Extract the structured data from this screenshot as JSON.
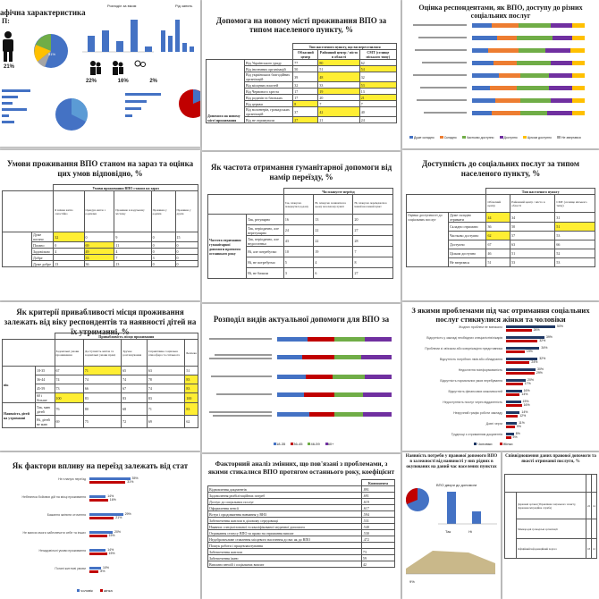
{
  "tiles": {
    "t1": {
      "title": "афічна характеристика",
      "sub": "П:",
      "gender_pct": "21%",
      "children_pcts": [
        "22%",
        "16%",
        "2%"
      ],
      "pie_pct": "51%",
      "title_sm": "Розподіл за віком",
      "title_sm2": "Рід занять"
    },
    "t2": {
      "title": "Допомога на новому місті проживання ВПО за типом населеного пункту, %",
      "col_head": "Тип населеного пункту, що ви переселилися",
      "cols": [
        "Обласний центр",
        "Районний центр / місто в області",
        "СМТ (селище міського типу)"
      ],
      "rows": [
        [
          "Від Українського уряду",
          "77",
          "80",
          "62"
        ],
        [
          "Від іноземних організацій",
          "50",
          "51",
          "54"
        ],
        [
          "Від українських благодійних організацій",
          "39",
          "48",
          "32"
        ],
        [
          "Від місцевих властей",
          "32",
          "33",
          "53"
        ],
        [
          "Від Червоного хреста",
          "17",
          "19",
          "13"
        ],
        [
          "Від родичів та близьких",
          "17",
          "20",
          "21"
        ],
        [
          "Від церкви",
          "8",
          "7",
          "7"
        ],
        [
          "Від волонтерів, громадських організацій",
          "37",
          "42",
          "40"
        ],
        [
          "Від не отримували",
          "27",
          "21",
          "24"
        ]
      ],
      "side_label": "Допомога на новому місті проживання"
    },
    "t3": {
      "title": "Оцінка респондентами, як ВПО, доступу до різних соціальних послуг",
      "legend": [
        "Дуже складно",
        "Складно",
        "Частково доступно",
        "Доступно",
        "Цілком доступно",
        "Не звертався"
      ]
    },
    "t4": {
      "title": "Умови проживання ВПО станом на зараз та оцінка цих умов відповідно, %",
      "col_head": "Умови проживання ВПО станом на зараз",
      "rows": [
        [
          "Дуже погано",
          "32",
          "0",
          "9",
          "0",
          "15"
        ],
        [
          "Погано",
          "0",
          "69",
          "11",
          "0",
          "0"
        ],
        [
          "Задовільно",
          "4",
          "49",
          "4",
          "0",
          "0"
        ],
        [
          "Добре",
          "",
          "33",
          "7",
          "3",
          "0"
        ],
        [
          "Дуже добре",
          "13",
          "36",
          "13",
          "0",
          "0"
        ]
      ]
    },
    "t5": {
      "title": "Як частота отримання гуманітарної допомоги від намір переїзду, %",
      "col_head": "Чи плануєте переїзд",
      "cols": [
        "Так, плануємо повернутися додому",
        "Ні, плануємо залишатися в цьому населеному пункті",
        "Ні, плануємо переїжджати в інший населений пункт"
      ],
      "rows": [
        [
          "Так, регулярно",
          "16",
          "13",
          "20"
        ],
        [
          "Так, періодично, але нерегулярно",
          "24",
          "22",
          "27"
        ],
        [
          "Так, періодично, але недостатньо",
          "43",
          "22",
          "28"
        ],
        [
          "Ні, але потребуємо",
          "10",
          "19",
          "7"
        ],
        [
          "Ні, не потребуємо",
          "5",
          "4",
          "8"
        ],
        [
          "Ні, не бачили",
          "3",
          "6",
          "27"
        ]
      ],
      "side_label": "Частота отримання гуманітарної допомоги протягом останнього року"
    },
    "t6": {
      "title": "Доступність до соціальних послуг за типом населеного пункту, %",
      "col_head": "Тип населеного пункту",
      "cols": [
        "Обласний центр",
        "Районний центр / місто в області",
        "СМТ (селище міського типу)"
      ],
      "rows": [
        [
          "Дуже складно отримати",
          "44",
          "34",
          "31"
        ],
        [
          "Складно отримати",
          "36",
          "50",
          "51"
        ],
        [
          "Частково доступно",
          "62",
          "57",
          "53"
        ],
        [
          "Доступно",
          "67",
          "63",
          "66"
        ],
        [
          "Цілком доступно",
          "46",
          "51",
          "52"
        ],
        [
          "Не звертався",
          "51",
          "53",
          "53"
        ]
      ],
      "side_label": "Оцінка доступності до соціальних послуг"
    },
    "t7": {
      "title": "Як критерії привабливості місця проживання залежать від віку респондентів та наявності дітей на їх утриманні, %",
      "col_head": "Привабливість місця проживання",
      "cols": [
        "Задовільні умови проживання",
        "Доступність житла та задовільні умови праці",
        "Зручне розташування",
        "Сприятливе соціальна атмосфера та спільнота",
        "Безпека"
      ],
      "groups": [
        {
          "label": "вік",
          "rows": [
            [
              "18-35",
              "67",
              "71",
              "65",
              "63",
              "51"
            ],
            [
              "36-44",
              "74",
              "74",
              "74",
              "78",
              "83"
            ],
            [
              "45-59",
              "73",
              "66",
              "67",
              "74",
              "83"
            ],
            [
              "60 і більше",
              "100",
              "83",
              "83",
              "83",
              "100"
            ]
          ]
        },
        {
          "label": "Наявність дітей на утриманні",
          "rows": [
            [
              "Так, маю дітей",
              "76",
              "80",
              "68",
              "71",
              "83"
            ],
            [
              "Ні, дітей не маю",
              "69",
              "75",
              "72",
              "69",
              "62"
            ]
          ]
        }
      ]
    },
    "t8": {
      "title": "Розподіл видів актуальної допомоги для ВПО за",
      "legend": [
        "18-35",
        "36-45",
        "46-59",
        "60+"
      ]
    },
    "t9": {
      "title": "З якими проблемами під час отримання соціальних послуг стикнулися жінки та чоловіки",
      "items": [
        [
          "Жодних проблем не виникало",
          "50%",
          "26%"
        ],
        [
          "Відсутність у закладі необхідних спеціалістів/лікарів",
          "39%",
          "32%"
        ],
        [
          "Проблеми зі зв'язком або комунікацією представника",
          "34%",
          "19%"
        ],
        [
          "Відсутність потрібних ліків або обладнання",
          "32%",
          "24%"
        ],
        [
          "Недостатня поінформованість",
          "30%",
          "29%"
        ],
        [
          "Відсутність нормальних умов перебування",
          "20%",
          "17%"
        ],
        [
          "Відсутність фінансових можливостей",
          "16%",
          "14%"
        ],
        [
          "Недоступність послуг через віддаленість",
          "15%",
          "16%"
        ],
        [
          "Незручний графік роботи закладу",
          "14%",
          "12%"
        ],
        [
          "Довгі черги",
          "11%",
          "9%"
        ],
        [
          "Труднощі з отриманням документів",
          "8%",
          "5%"
        ]
      ],
      "legend": [
        "Чоловіки",
        "Жінки"
      ]
    },
    "t10": {
      "title": "Як фактори впливу на переїзд залежать від стат",
      "items": [
        [
          "Не планую переїзд",
          "35%",
          "31%"
        ],
        [
          "Небезпека бойових дій на місці проживання",
          "14%",
          "16%"
        ],
        [
          "Бажання змінити оточення",
          "29%",
          "21%"
        ],
        [
          "Не маючи змоги забезпечити себе та інших",
          "20%",
          "15%"
        ],
        [
          "Незадовільні умови проживання",
          "14%",
          "15%"
        ],
        [
          "Погані житлові умови",
          "10%",
          "8%"
        ]
      ],
      "legend": [
        "чоловік",
        "жінка"
      ]
    },
    "t11": {
      "title": "Факторний аналіз змінних, що пов'язані з проблемами, з якими стикалися ВПО протягом останнього року, коефіцієнт",
      "col_head": "Компонента",
      "rows": [
        [
          "Відновлення документів",
          ".891"
        ],
        [
          "Задоволення реабілітаційних потреб",
          ".691"
        ],
        [
          "Доступ до соціальних послуг",
          ".619"
        ],
        [
          "Оформлення пенсії",
          ".617"
        ],
        [
          "Вступ і продовження навчання у ВНЗ",
          ".594"
        ],
        [
          "Забезпечення житлом в діловому середовищі",
          ".531"
        ],
        [
          "Наявних спеціалізованої та кваліфікованої медичної допомоги",
          ".540"
        ],
        [
          "Отримання статусу ВПО та право на отримання виплат",
          ".530"
        ],
        [
          "Недоброзичливе ставлення місцевого населення до вас як до ВПО",
          ".472"
        ],
        [
          "Пошук роботи і працевлаштування",
          ""
        ],
        [
          "Забезпечення житлом",
          "73"
        ],
        [
          "Забезпечення їжею",
          "59"
        ],
        [
          "Виплати пенсій і соціальних виплат",
          "42"
        ]
      ]
    },
    "t12": {
      "title": "Наявність потреби у правової допомоги ВПО в залежності від наявності у них рідних в окупованих на даний час населених пунктах",
      "sub": "ВПО двори до допомоги",
      "bars": [
        "Так",
        "Ні"
      ],
      "pct": "9%"
    },
    "t13": {
      "title": "Співвідношення даних правової допомоги та якості отриманої послуги, %",
      "rows": [
        [
          "Державні органи (Управління соціального захисту, Державна міграційна служба)",
          "22",
          "14"
        ],
        [
          "Міжнародні громадські організації",
          "",
          ""
        ],
        [
          "Офіційний інформаційний портал",
          "18",
          "12"
        ]
      ]
    }
  }
}
